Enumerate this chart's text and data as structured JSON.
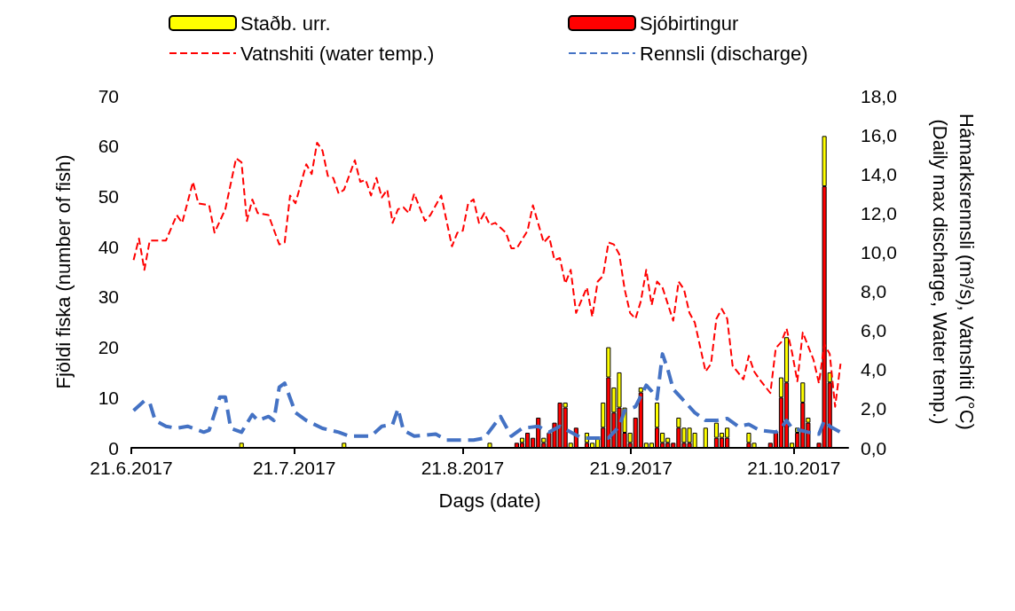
{
  "chart_data": {
    "type": "bar",
    "stacked": true,
    "xlabel": "Dags (date)",
    "ylabel": "Fjöldi fiska (number of fish)",
    "y2label": "Hámarksrennsli (m³/s), Vatnshiti (°C)\n(Daily max discharge, Water temp.)",
    "x": [
      "2017-07-11",
      "2017-07-30",
      "2017-08-26",
      "2017-08-31",
      "2017-09-01",
      "2017-09-02",
      "2017-09-03",
      "2017-09-04",
      "2017-09-05",
      "2017-09-06",
      "2017-09-07",
      "2017-09-08",
      "2017-09-09",
      "2017-09-10",
      "2017-09-11",
      "2017-09-13",
      "2017-09-14",
      "2017-09-15",
      "2017-09-16",
      "2017-09-17",
      "2017-09-18",
      "2017-09-19",
      "2017-09-20",
      "2017-09-21",
      "2017-09-22",
      "2017-09-23",
      "2017-09-24",
      "2017-09-25",
      "2017-09-26",
      "2017-09-27",
      "2017-09-28",
      "2017-09-29",
      "2017-09-30",
      "2017-10-01",
      "2017-10-02",
      "2017-10-03",
      "2017-10-05",
      "2017-10-07",
      "2017-10-08",
      "2017-10-09",
      "2017-10-13",
      "2017-10-14",
      "2017-10-17",
      "2017-10-18",
      "2017-10-19",
      "2017-10-20",
      "2017-10-21",
      "2017-10-22",
      "2017-10-23",
      "2017-10-24",
      "2017-10-26",
      "2017-10-27",
      "2017-10-28"
    ],
    "series": [
      {
        "name": "Sjóbirtingur",
        "color": "#ff0000",
        "values": [
          null,
          null,
          null,
          1,
          1,
          3,
          2,
          6,
          1,
          3,
          5,
          9,
          8,
          null,
          4,
          1,
          null,
          null,
          4,
          14,
          7,
          8,
          3,
          1,
          6,
          11,
          null,
          null,
          4,
          1,
          1,
          1,
          4,
          1,
          1,
          null,
          null,
          2,
          2,
          2,
          1,
          null,
          1,
          3,
          10,
          13,
          null,
          3,
          9,
          5,
          1,
          52,
          13
        ]
      },
      {
        "name": "Staðb. urr.",
        "color": "#ffff00",
        "values": [
          1,
          1,
          1,
          null,
          1,
          null,
          null,
          null,
          1,
          null,
          null,
          null,
          1,
          1,
          null,
          2,
          1,
          2,
          5,
          6,
          5,
          7,
          5,
          2,
          null,
          1,
          1,
          1,
          5,
          2,
          1,
          null,
          2,
          3,
          3,
          3,
          4,
          3,
          1,
          2,
          2,
          1,
          null,
          null,
          4,
          9,
          1,
          1,
          4,
          1,
          null,
          10,
          2
        ]
      },
      {
        "name": "Vatnshiti (water temp.)",
        "type": "line",
        "axis": "y2",
        "color": "#ff0000",
        "line_style": "dashed",
        "x": [
          "2017-06-21",
          "2017-06-22",
          "2017-06-23",
          "2017-06-24",
          "2017-06-27",
          "2017-06-29",
          "2017-06-30",
          "2017-07-02",
          "2017-07-03",
          "2017-07-05",
          "2017-07-06",
          "2017-07-08",
          "2017-07-10",
          "2017-07-11",
          "2017-07-12",
          "2017-07-13",
          "2017-07-14",
          "2017-07-16",
          "2017-07-18",
          "2017-07-19",
          "2017-07-20",
          "2017-07-21",
          "2017-07-23",
          "2017-07-24",
          "2017-07-25",
          "2017-07-26",
          "2017-07-27",
          "2017-07-28",
          "2017-07-29",
          "2017-07-30",
          "2017-08-01",
          "2017-08-02",
          "2017-08-03",
          "2017-08-04",
          "2017-08-05",
          "2017-08-06",
          "2017-08-07",
          "2017-08-08",
          "2017-08-09",
          "2017-08-10",
          "2017-08-11",
          "2017-08-12",
          "2017-08-14",
          "2017-08-15",
          "2017-08-17",
          "2017-08-19",
          "2017-08-20",
          "2017-08-21",
          "2017-08-22",
          "2017-08-23",
          "2017-08-24",
          "2017-08-25",
          "2017-08-26",
          "2017-08-27",
          "2017-08-29",
          "2017-08-30",
          "2017-08-31",
          "2017-09-02",
          "2017-09-03",
          "2017-09-05",
          "2017-09-06",
          "2017-09-07",
          "2017-09-08",
          "2017-09-09",
          "2017-09-10",
          "2017-09-11",
          "2017-09-13",
          "2017-09-14",
          "2017-09-15",
          "2017-09-16",
          "2017-09-17",
          "2017-09-18",
          "2017-09-19",
          "2017-09-20",
          "2017-09-21",
          "2017-09-22",
          "2017-09-23",
          "2017-09-24",
          "2017-09-25",
          "2017-09-26",
          "2017-09-27",
          "2017-09-29",
          "2017-09-30",
          "2017-10-01",
          "2017-10-02",
          "2017-10-03",
          "2017-10-05",
          "2017-10-06",
          "2017-10-07",
          "2017-10-08",
          "2017-10-09",
          "2017-10-10",
          "2017-10-12",
          "2017-10-13",
          "2017-10-14",
          "2017-10-15",
          "2017-10-17",
          "2017-10-18",
          "2017-10-19",
          "2017-10-20",
          "2017-10-21",
          "2017-10-22",
          "2017-10-23",
          "2017-10-25",
          "2017-10-26",
          "2017-10-27",
          "2017-10-28",
          "2017-10-29",
          "2017-10-30"
        ],
        "values": [
          9.6,
          10.7,
          9.1,
          10.6,
          10.6,
          11.9,
          11.5,
          13.6,
          12.5,
          12.4,
          11.0,
          12.2,
          14.8,
          14.6,
          11.6,
          12.7,
          12.0,
          11.9,
          10.4,
          10.5,
          12.9,
          12.5,
          14.5,
          14.0,
          15.6,
          15.2,
          13.9,
          13.8,
          13.0,
          13.2,
          14.7,
          13.6,
          13.7,
          12.9,
          13.8,
          12.8,
          13.2,
          11.5,
          12.2,
          12.3,
          12.0,
          13.0,
          11.6,
          11.9,
          12.9,
          10.3,
          11.0,
          11.1,
          12.5,
          12.7,
          11.5,
          12.0,
          11.4,
          11.5,
          11.0,
          10.2,
          10.2,
          11.1,
          12.4,
          10.5,
          10.8,
          9.6,
          9.7,
          8.4,
          9.1,
          6.9,
          8.2,
          6.7,
          8.5,
          8.8,
          10.5,
          10.4,
          9.9,
          8.1,
          6.9,
          6.6,
          7.5,
          9.1,
          7.3,
          8.5,
          8.2,
          6.5,
          8.5,
          8.1,
          6.9,
          6.4,
          3.9,
          4.3,
          6.6,
          7.1,
          6.6,
          4.2,
          3.5,
          4.7,
          3.9,
          3.5,
          2.8,
          5.1,
          5.4,
          6.1,
          4.9,
          3.4,
          5.9,
          4.5,
          3.3,
          5.3,
          4.8,
          2.1,
          4.3
        ]
      },
      {
        "name": "Rennsli (discharge)",
        "type": "line",
        "axis": "y2",
        "color": "#4472c4",
        "line_style": "dashed",
        "x": [
          "2017-06-21",
          "2017-06-23",
          "2017-06-24",
          "2017-06-25",
          "2017-06-27",
          "2017-06-29",
          "2017-07-01",
          "2017-07-04",
          "2017-07-05",
          "2017-07-07",
          "2017-07-08",
          "2017-07-09",
          "2017-07-11",
          "2017-07-13",
          "2017-07-14",
          "2017-07-16",
          "2017-07-17",
          "2017-07-18",
          "2017-07-19",
          "2017-07-21",
          "2017-07-23",
          "2017-07-26",
          "2017-07-29",
          "2017-07-31",
          "2017-08-04",
          "2017-08-06",
          "2017-08-08",
          "2017-08-09",
          "2017-08-10",
          "2017-08-12",
          "2017-08-16",
          "2017-08-18",
          "2017-08-23",
          "2017-08-25",
          "2017-08-28",
          "2017-08-30",
          "2017-09-01",
          "2017-09-04",
          "2017-09-06",
          "2017-09-08",
          "2017-09-10",
          "2017-09-12",
          "2017-09-15",
          "2017-09-17",
          "2017-09-19",
          "2017-09-20",
          "2017-09-22",
          "2017-09-24",
          "2017-09-25",
          "2017-09-26",
          "2017-09-27",
          "2017-09-28",
          "2017-09-29",
          "2017-10-01",
          "2017-10-03",
          "2017-10-05",
          "2017-10-07",
          "2017-10-09",
          "2017-10-11",
          "2017-10-13",
          "2017-10-15",
          "2017-10-18",
          "2017-10-19",
          "2017-10-20",
          "2017-10-21",
          "2017-10-24",
          "2017-10-26",
          "2017-10-27",
          "2017-10-28",
          "2017-10-30"
        ],
        "values": [
          1.9,
          2.4,
          2.3,
          1.4,
          1.1,
          1.0,
          1.1,
          0.8,
          0.9,
          2.6,
          2.6,
          1.0,
          0.8,
          1.7,
          1.4,
          1.6,
          1.4,
          3.1,
          3.3,
          1.8,
          1.4,
          1.0,
          0.8,
          0.6,
          0.6,
          1.1,
          1.2,
          2.0,
          0.9,
          0.6,
          0.7,
          0.4,
          0.4,
          0.5,
          1.6,
          0.6,
          1.0,
          1.1,
          0.8,
          1.1,
          0.8,
          0.5,
          0.5,
          0.5,
          1.1,
          1.9,
          2.1,
          3.2,
          2.9,
          2.5,
          4.8,
          4.0,
          3.0,
          2.4,
          1.8,
          1.4,
          1.4,
          1.5,
          1.1,
          1.2,
          0.9,
          0.8,
          1.0,
          1.4,
          1.0,
          0.8,
          0.7,
          1.4,
          1.1,
          0.8
        ]
      }
    ],
    "xlim": [
      "2017-06-21",
      "2017-10-31"
    ],
    "xticks": [
      {
        "value": "2017-06-21",
        "label": "21.6.2017"
      },
      {
        "value": "2017-07-21",
        "label": "21.7.2017"
      },
      {
        "value": "2017-08-21",
        "label": "21.8.2017"
      },
      {
        "value": "2017-09-21",
        "label": "21.9.2017"
      },
      {
        "value": "2017-10-21",
        "label": "21.10.2017"
      }
    ],
    "ylim": [
      0,
      70
    ],
    "yticks": [
      0,
      10,
      20,
      30,
      40,
      50,
      60,
      70
    ],
    "y2lim": [
      0,
      18
    ],
    "y2ticks": [
      {
        "value": 0,
        "label": "0,0"
      },
      {
        "value": 2,
        "label": "2,0"
      },
      {
        "value": 4,
        "label": "4,0"
      },
      {
        "value": 6,
        "label": "6,0"
      },
      {
        "value": 8,
        "label": "8,0"
      },
      {
        "value": 10,
        "label": "10,0"
      },
      {
        "value": 12,
        "label": "12,0"
      },
      {
        "value": 14,
        "label": "14,0"
      },
      {
        "value": 16,
        "label": "16,0"
      },
      {
        "value": 18,
        "label": "18,0"
      }
    ],
    "grid": false,
    "legend": "top",
    "marker": "none"
  }
}
